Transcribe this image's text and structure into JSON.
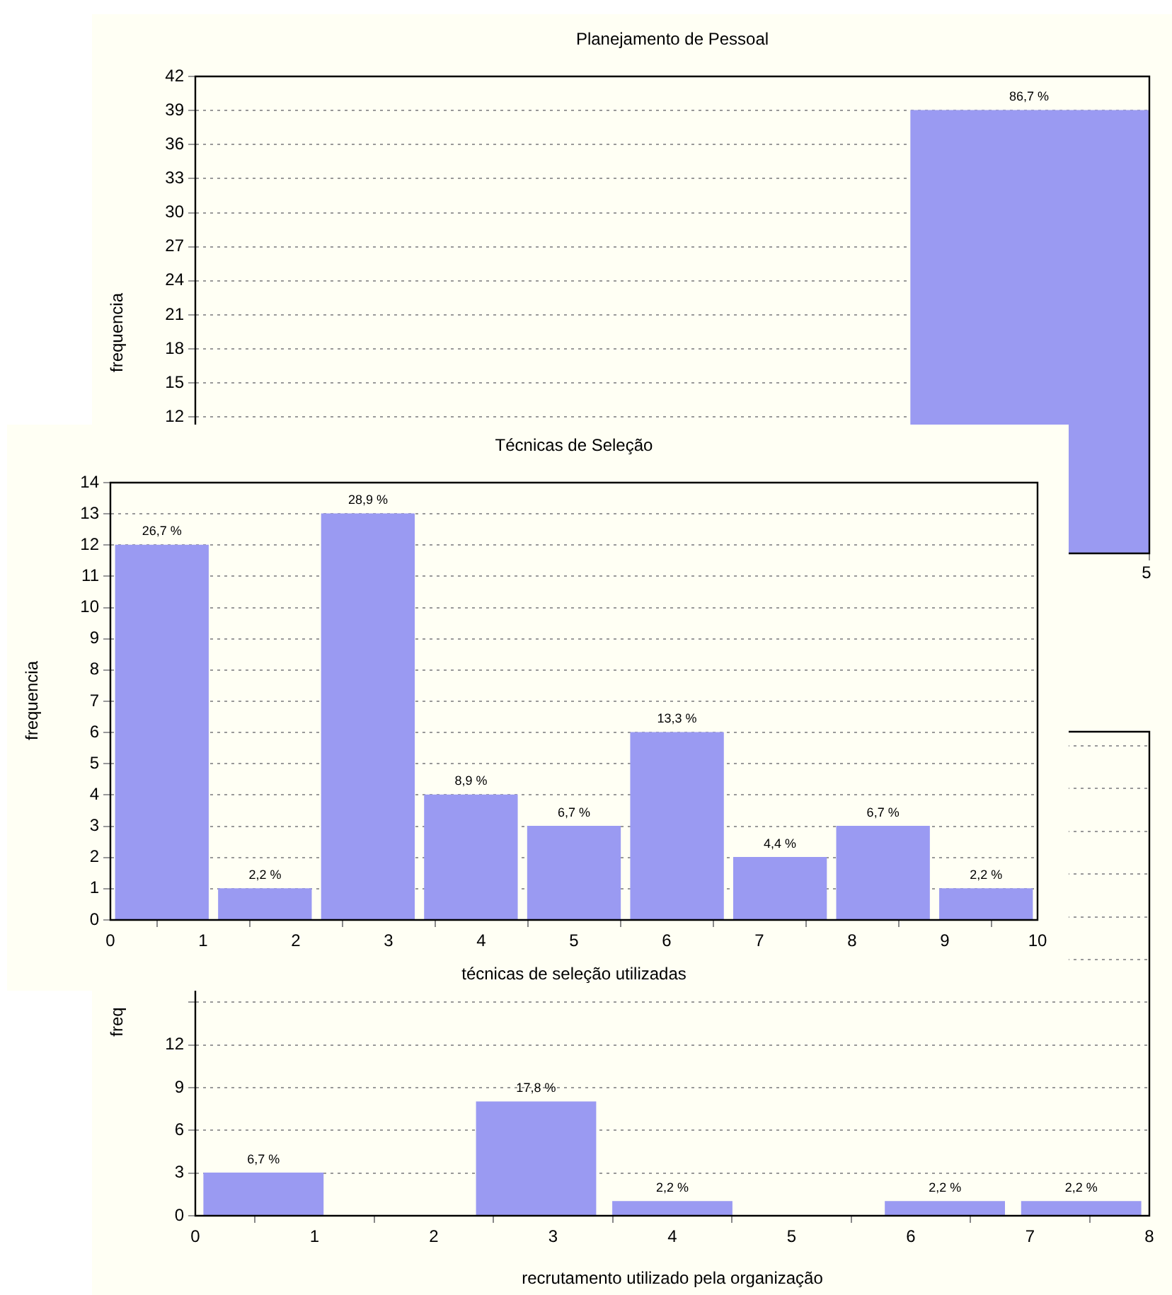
{
  "chart_data": [
    {
      "type": "bar",
      "title": "Planejamento de Pessoal",
      "ylabel": "frequencia",
      "categories": [
        null,
        null,
        null,
        null
      ],
      "values": [
        null,
        null,
        null,
        39
      ],
      "color": "#9a9af2",
      "ylim": [
        0,
        42
      ],
      "tick_labels": "y",
      "yticks": [
        12,
        15,
        18,
        21,
        24,
        27,
        30,
        33,
        36,
        39,
        42
      ],
      "grid": "y",
      "annotations": [
        {
          "text": "86,7 %",
          "y": 39
        },
        "5"
      ]
    },
    {
      "type": "histogram",
      "title": "Técnicas de Seleção",
      "xlabel": "técnicas de seleção utilizadas",
      "ylabel": "frequencia",
      "bins": [
        0,
        1.111,
        2.222,
        3.333,
        4.444,
        5.556,
        6.667,
        7.778,
        8.889,
        10
      ],
      "values": [
        12,
        1,
        13,
        4,
        3,
        6,
        2,
        3,
        1
      ],
      "color": "#9a9af2",
      "xlim": [
        0,
        10
      ],
      "ylim": [
        0,
        14
      ],
      "xticks": [
        0,
        1,
        2,
        3,
        4,
        5,
        6,
        7,
        8,
        9,
        10
      ],
      "yticks": [
        0,
        1,
        2,
        3,
        4,
        5,
        6,
        7,
        8,
        9,
        10,
        11,
        12,
        13,
        14
      ],
      "grid": "y",
      "annotations": [
        {
          "text": "26,7 %",
          "x": 0.556,
          "y": 12
        },
        {
          "text": "2,2 %",
          "x": 1.667,
          "y": 1
        },
        {
          "text": "28,9 %",
          "x": 2.778,
          "y": 13
        },
        {
          "text": "8,9 %",
          "x": 3.889,
          "y": 4
        },
        {
          "text": "6,7 %",
          "x": 5,
          "y": 3
        },
        {
          "text": "13,3 %",
          "x": 6.111,
          "y": 6
        },
        {
          "text": "4,4 %",
          "x": 7.222,
          "y": 2
        },
        {
          "text": "6,7 %",
          "x": 8.333,
          "y": 3
        },
        {
          "text": "2,2 %",
          "x": 9.444,
          "y": 1
        }
      ]
    },
    {
      "type": "histogram",
      "xlabel": "recrutamento utilizado pela organização",
      "ylabel": "freq",
      "bins": [
        0,
        1.143,
        2.286,
        3.429,
        4.571,
        5.714,
        6.857,
        8
      ],
      "values": [
        3,
        null,
        8,
        1,
        0,
        1,
        1
      ],
      "color": "#9a9af2",
      "xlim": [
        0,
        8
      ],
      "ylim": [
        0,
        34
      ],
      "xticks": [
        0,
        1,
        2,
        3,
        4,
        5,
        6,
        7,
        8
      ],
      "yticks": [
        0,
        3,
        6,
        9,
        12,
        {
          "value": 15,
          "label": null
        },
        {
          "value": 18,
          "label": null
        },
        {
          "value": 21,
          "label": null
        },
        {
          "value": 24,
          "label": null
        },
        {
          "value": 27,
          "label": null
        },
        {
          "value": 30,
          "label": null
        },
        {
          "value": 33,
          "label": null
        }
      ],
      "grid": "y",
      "annotations": [
        {
          "text": "6,7 %",
          "x": 0.571,
          "y": 3
        },
        {
          "text": "17,8 %",
          "x": 2.857,
          "y": 8
        },
        {
          "text": "2,2 %",
          "x": 4,
          "y": 1
        },
        {
          "text": "2,2 %",
          "x": 6.286,
          "y": 1
        },
        {
          "text": "2,2 %",
          "x": 7.429,
          "y": 1
        }
      ]
    }
  ]
}
